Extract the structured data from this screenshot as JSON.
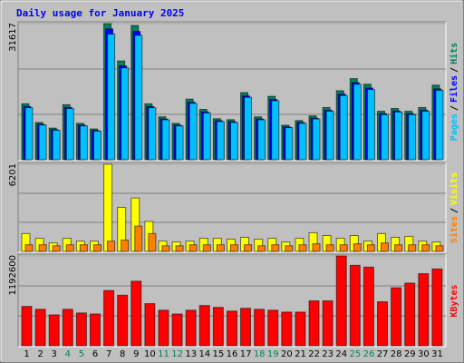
{
  "chart_data": [
    {
      "type": "bar",
      "title": "Daily usage for January 2025",
      "series": [
        {
          "name": "Hits",
          "color": "#00805c",
          "values": [
            12990,
            8660,
            7360,
            12780,
            8450,
            7150,
            31617,
            22950,
            31180,
            12990,
            9960,
            8450,
            14080,
            11690,
            9530,
            9310,
            15590,
            9960,
            14730,
            8010,
            9100,
            10180,
            12130,
            16030,
            18840,
            17540,
            11260,
            11910,
            11260,
            12130,
            17330
          ]
        },
        {
          "name": "Files",
          "color": "#0000ff",
          "values": [
            12350,
            8230,
            6990,
            12140,
            8030,
            6790,
            30400,
            21800,
            29800,
            12340,
            9460,
            8030,
            13370,
            11110,
            9050,
            8850,
            14810,
            9460,
            13990,
            7610,
            8640,
            9670,
            11520,
            15230,
            17900,
            16660,
            10700,
            11310,
            10700,
            11520,
            16460
          ]
        },
        {
          "name": "Pages",
          "color": "#00c0ff",
          "values": [
            12080,
            8050,
            6850,
            11890,
            7860,
            6650,
            29200,
            21340,
            28900,
            12080,
            9260,
            7860,
            13090,
            10870,
            8860,
            8660,
            14500,
            9260,
            13700,
            7450,
            8460,
            9470,
            11280,
            14910,
            17520,
            16310,
            10470,
            11080,
            10470,
            11280,
            16120
          ]
        }
      ],
      "ylim": [
        0,
        31617
      ],
      "yticks": [
        31617
      ],
      "grid_divisions": 3,
      "legend_separator": "/"
    },
    {
      "type": "bar",
      "series": [
        {
          "name": "Visits",
          "color": "#ffff00",
          "values": [
            1270,
            930,
            600,
            930,
            730,
            730,
            6201,
            3130,
            3800,
            2130,
            730,
            670,
            730,
            930,
            930,
            870,
            1000,
            870,
            930,
            670,
            930,
            1330,
            1130,
            930,
            1130,
            730,
            1270,
            1000,
            1070,
            730,
            670
          ]
        },
        {
          "name": "Sites",
          "color": "#ff8000",
          "values": [
            470,
            470,
            400,
            470,
            470,
            470,
            730,
            800,
            1800,
            1270,
            400,
            400,
            470,
            470,
            470,
            470,
            470,
            400,
            470,
            400,
            470,
            540,
            470,
            470,
            540,
            470,
            600,
            470,
            470,
            470,
            400
          ]
        }
      ],
      "ylim": [
        0,
        6201
      ],
      "yticks": [
        6201
      ],
      "grid_divisions": 3,
      "legend_separator": "/"
    },
    {
      "type": "bar",
      "categories": [
        "1",
        "2",
        "3",
        "4",
        "5",
        "6",
        "7",
        "8",
        "9",
        "10",
        "11",
        "12",
        "13",
        "14",
        "15",
        "16",
        "17",
        "18",
        "19",
        "20",
        "21",
        "22",
        "23",
        "24",
        "25",
        "26",
        "27",
        "28",
        "29",
        "30",
        "31"
      ],
      "category_colors": [
        "#000000",
        "#000000",
        "#000000",
        "#00805c",
        "#00805c",
        "#000000",
        "#000000",
        "#000000",
        "#000000",
        "#000000",
        "#00805c",
        "#00805c",
        "#000000",
        "#000000",
        "#000000",
        "#000000",
        "#000000",
        "#00805c",
        "#00805c",
        "#000000",
        "#000000",
        "#000000",
        "#000000",
        "#000000",
        "#00805c",
        "#00805c",
        "#000000",
        "#000000",
        "#000000",
        "#000000",
        "#000000"
      ],
      "series": [
        {
          "name": "KBytes",
          "color": "#ff0000",
          "values": [
            522000,
            484000,
            410000,
            484000,
            435000,
            422000,
            733000,
            671000,
            857000,
            559000,
            472000,
            422000,
            472000,
            534000,
            509000,
            460000,
            497000,
            484000,
            472000,
            447000,
            447000,
            596000,
            596000,
            1192600,
            1068000,
            1044000,
            584000,
            770000,
            832000,
            957000,
            1019000
          ]
        }
      ],
      "ylim": [
        0,
        1192600
      ],
      "yticks": [
        1192600
      ],
      "grid_divisions": 3
    }
  ]
}
